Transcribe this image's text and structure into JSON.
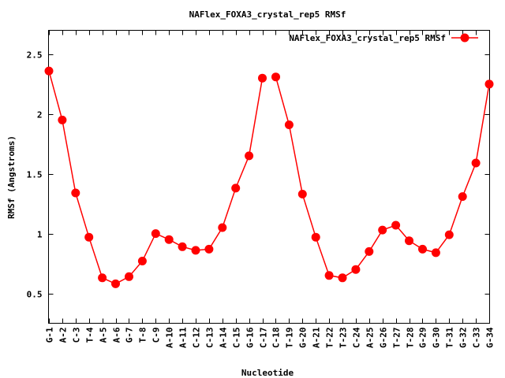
{
  "chart_data": {
    "type": "line",
    "title": "NAFlex_FOXA3_crystal_rep5 RMSf",
    "xlabel": "Nucleotide",
    "ylabel": "RMSf (Angstroms)",
    "ylim": [
      0.25,
      2.7
    ],
    "y_ticks": [
      {
        "value": 0.5,
        "label": "0.5"
      },
      {
        "value": 1,
        "label": "1"
      },
      {
        "value": 1.5,
        "label": "1.5"
      },
      {
        "value": 2,
        "label": "2"
      },
      {
        "value": 2.5,
        "label": "2.5"
      }
    ],
    "legend_position": "top-right",
    "grid": false,
    "categories": [
      "G-1",
      "A-2",
      "C-3",
      "T-4",
      "A-5",
      "A-6",
      "G-7",
      "T-8",
      "C-9",
      "A-10",
      "A-11",
      "C-12",
      "C-13",
      "A-14",
      "C-15",
      "G-16",
      "C-17",
      "C-18",
      "T-19",
      "G-20",
      "A-21",
      "T-22",
      "T-23",
      "C-24",
      "A-25",
      "G-26",
      "T-27",
      "T-28",
      "G-29",
      "G-30",
      "T-31",
      "G-32",
      "C-33",
      "G-34"
    ],
    "series": [
      {
        "name": "NAFlex_FOXA3_crystal_rep5 RMSf",
        "color": "#ff0000",
        "segments": [
          {
            "start": 0,
            "values": [
              2.36,
              1.95,
              1.34,
              0.97,
              0.63,
              0.58,
              0.64,
              0.77,
              1.0,
              0.95,
              0.89,
              0.86,
              0.87,
              1.05,
              1.38,
              1.65,
              2.3
            ]
          },
          {
            "start": 17,
            "values": [
              2.31,
              1.91,
              1.33,
              0.97,
              0.65,
              0.63,
              0.7,
              0.85,
              1.03,
              1.07,
              0.94,
              0.87,
              0.84,
              0.99,
              1.31,
              1.59,
              2.25
            ]
          }
        ]
      }
    ]
  }
}
